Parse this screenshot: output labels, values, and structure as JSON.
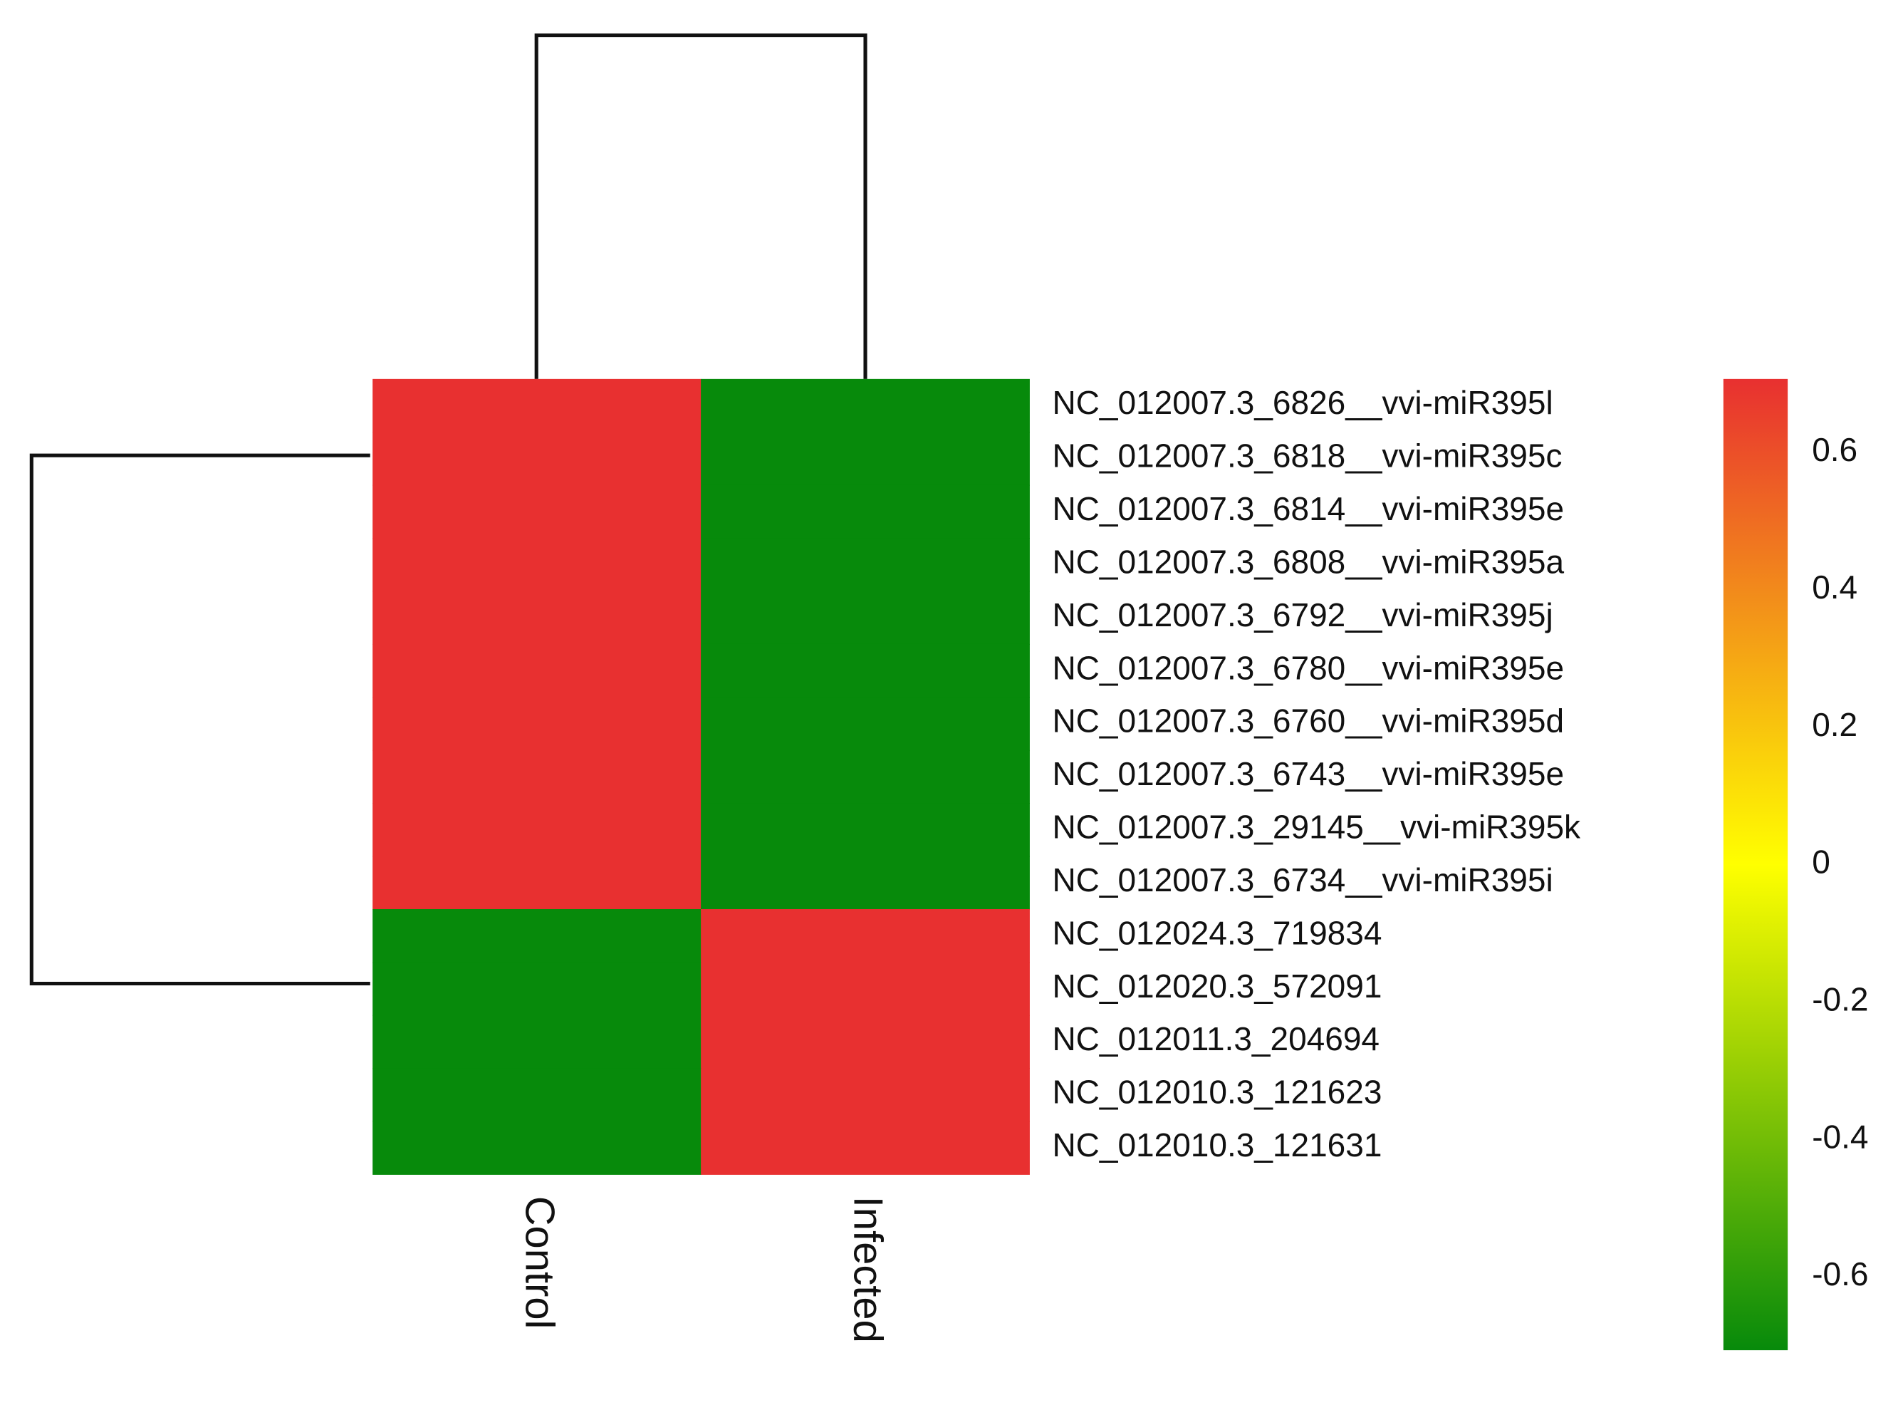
{
  "chart_data": {
    "type": "heatmap",
    "columns": [
      "Control",
      "Infected"
    ],
    "rows": [
      "NC_012007.3_6826__vvi-miR395l",
      "NC_012007.3_6818__vvi-miR395c",
      "NC_012007.3_6814__vvi-miR395e",
      "NC_012007.3_6808__vvi-miR395a",
      "NC_012007.3_6792__vvi-miR395j",
      "NC_012007.3_6780__vvi-miR395e",
      "NC_012007.3_6760__vvi-miR395d",
      "NC_012007.3_6743__vvi-miR395e",
      "NC_012007.3_29145__vvi-miR395k",
      "NC_012007.3_6734__vvi-miR395i",
      "NC_012024.3_719834",
      "NC_012020.3_572091",
      "NC_012011.3_204694",
      "NC_012010.3_121623",
      "NC_012010.3_121631"
    ],
    "values": [
      [
        0.707,
        -0.707
      ],
      [
        0.707,
        -0.707
      ],
      [
        0.707,
        -0.707
      ],
      [
        0.707,
        -0.707
      ],
      [
        0.707,
        -0.707
      ],
      [
        0.707,
        -0.707
      ],
      [
        0.707,
        -0.707
      ],
      [
        0.707,
        -0.707
      ],
      [
        0.707,
        -0.707
      ],
      [
        0.707,
        -0.707
      ],
      [
        -0.707,
        0.707
      ],
      [
        -0.707,
        0.707
      ],
      [
        -0.707,
        0.707
      ],
      [
        -0.707,
        0.707
      ],
      [
        -0.707,
        0.707
      ]
    ],
    "zlim": [
      -0.707,
      0.707
    ],
    "zticks": [
      -0.6,
      -0.4,
      -0.2,
      0,
      0.2,
      0.4,
      0.6
    ],
    "colors": [
      "#078a0b",
      "#ffff00",
      "#e83030"
    ]
  }
}
